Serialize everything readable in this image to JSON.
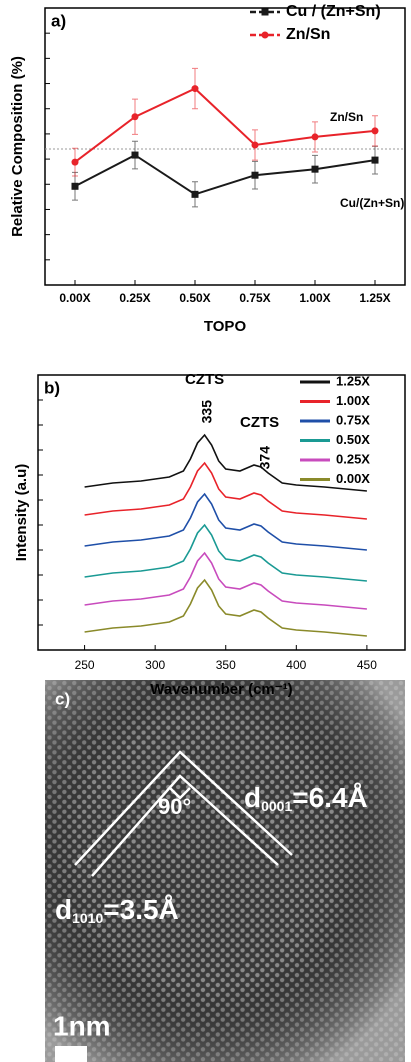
{
  "chart_data": [
    {
      "type": "line",
      "panel_label": "a)",
      "y_label": "Relative Composition (%)",
      "x_label": "TOPO",
      "categories": [
        "0.00X",
        "0.25X",
        "0.50X",
        "0.75X",
        "1.00X",
        "1.25X"
      ],
      "series": [
        {
          "name": "Cu / (Zn+Sn)",
          "color": "#1a1a1a",
          "marker": "square",
          "values": [
            3.92,
            5.16,
            3.6,
            4.36,
            4.6,
            4.96
          ],
          "errors": [
            0.55,
            0.55,
            0.5,
            0.55,
            0.55,
            0.55
          ]
        },
        {
          "name": "Zn/Sn",
          "color": "#e8232a",
          "marker": "circle",
          "values": [
            4.88,
            6.68,
            7.8,
            5.56,
            5.88,
            6.12
          ],
          "errors": [
            0.55,
            0.7,
            0.8,
            0.6,
            0.6,
            0.6
          ]
        }
      ],
      "annotations": [
        "Zn/Sn",
        "Cu/(Zn+Sn)"
      ],
      "reference_line": 5.4,
      "ylim": [
        0,
        11
      ],
      "yticks": [
        1,
        2,
        3,
        4,
        5,
        6,
        7,
        8,
        9,
        10
      ],
      "legend": "upper right",
      "grid": false
    },
    {
      "type": "line",
      "panel_label": "b)",
      "y_label": "Intensity (a.u)",
      "x_label": "Wavenumber (cm⁻¹)",
      "x": [
        250,
        260,
        270,
        280,
        290,
        300,
        310,
        320,
        325,
        330,
        335,
        340,
        345,
        350,
        360,
        370,
        375,
        380,
        390,
        400,
        420,
        450
      ],
      "series": [
        {
          "name": "1.25X",
          "color": "#111111",
          "values": [
            6.52,
            6.6,
            6.68,
            6.72,
            6.76,
            6.84,
            6.92,
            7.16,
            7.64,
            8.28,
            8.6,
            8.2,
            7.56,
            7.24,
            7.16,
            7.4,
            7.32,
            7.08,
            6.68,
            6.6,
            6.52,
            6.36
          ]
        },
        {
          "name": "1.00X",
          "color": "#e8232a",
          "values": [
            5.4,
            5.48,
            5.56,
            5.6,
            5.64,
            5.72,
            5.8,
            6.04,
            6.52,
            7.16,
            7.48,
            7.08,
            6.44,
            6.12,
            6.04,
            6.28,
            6.2,
            5.96,
            5.56,
            5.48,
            5.4,
            5.24
          ]
        },
        {
          "name": "0.75X",
          "color": "#1f4fa8",
          "values": [
            4.16,
            4.24,
            4.32,
            4.36,
            4.4,
            4.48,
            4.56,
            4.8,
            5.28,
            5.92,
            6.24,
            5.84,
            5.2,
            4.88,
            4.8,
            5.04,
            4.96,
            4.72,
            4.32,
            4.24,
            4.16,
            4.0
          ]
        },
        {
          "name": "0.50X",
          "color": "#1a9a94",
          "values": [
            2.92,
            3.0,
            3.08,
            3.12,
            3.16,
            3.24,
            3.32,
            3.56,
            4.04,
            4.68,
            5.0,
            4.6,
            3.96,
            3.64,
            3.56,
            3.8,
            3.72,
            3.48,
            3.08,
            3.0,
            2.92,
            2.76
          ]
        },
        {
          "name": "0.25X",
          "color": "#c84bbd",
          "values": [
            1.8,
            1.88,
            1.96,
            2.0,
            2.04,
            2.12,
            2.2,
            2.44,
            2.92,
            3.56,
            3.88,
            3.48,
            2.84,
            2.52,
            2.44,
            2.68,
            2.6,
            2.36,
            1.96,
            1.88,
            1.8,
            1.64
          ]
        },
        {
          "name": "0.00X",
          "color": "#8a8a2a",
          "values": [
            0.72,
            0.8,
            0.88,
            0.92,
            0.96,
            1.04,
            1.12,
            1.36,
            1.84,
            2.48,
            2.8,
            2.4,
            1.76,
            1.44,
            1.36,
            1.6,
            1.52,
            1.28,
            0.88,
            0.8,
            0.72,
            0.56
          ]
        }
      ],
      "annotations": [
        "CZTS",
        "335",
        "CZTS",
        "374"
      ],
      "xlim": [
        217,
        477
      ],
      "xticks": [
        250,
        300,
        350,
        400,
        450
      ],
      "ylim": [
        0,
        11
      ],
      "yticks": [
        1,
        2,
        3,
        4,
        5,
        6,
        7,
        8,
        9,
        10
      ],
      "legend": "upper right",
      "grid": false
    }
  ],
  "image": {
    "panel_label": "c)",
    "angle": "90°",
    "d1": {
      "main": "d",
      "sub": "0001",
      "rest": "=6.4Å"
    },
    "d2": {
      "main": "d",
      "sub": "1010",
      "rest": "=3.5Å"
    },
    "scale": "1nm"
  }
}
